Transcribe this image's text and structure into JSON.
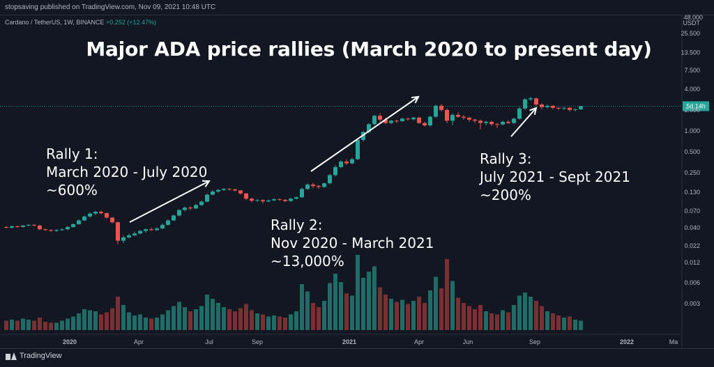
{
  "header": {
    "publisher_text": "stopsaving published on TradingView.com, Nov 09, 2021 10:48 UTC"
  },
  "symbol": {
    "name": "Cardano / TetherUS, 1W, BINANCE",
    "change": "+0.252 (+12.47%)"
  },
  "footer": {
    "brand": "TradingView"
  },
  "colors": {
    "up": "#26a69a",
    "down": "#ef5350",
    "vol_up": "#1f6b66",
    "vol_down": "#7a2f33",
    "background": "#131722",
    "axis_text": "#b2b5be"
  },
  "chart_data": {
    "type": "candlestick",
    "title": "Major ADA price rallies (March 2020 to present day)",
    "y_scale": "log",
    "currency_label": "USDT",
    "top_value": "48.000",
    "price_ticks": [
      25.5,
      13.5,
      7.5,
      4.0,
      2.0,
      1.0,
      0.5,
      0.25,
      0.13,
      0.07,
      0.04,
      0.022
    ],
    "price_tick_labels": [
      "25.500",
      "13.500",
      "7.500",
      "4.000",
      "2.000",
      "1.000",
      "0.500",
      "0.250",
      "0.130",
      "0.070",
      "0.040",
      "0.022"
    ],
    "volume_tick_labels": [
      "0.012",
      "0.006",
      "0.003"
    ],
    "x_tick_labels": [
      "2020",
      "Apr",
      "Jul",
      "Sep",
      "2021",
      "Apr",
      "Jun",
      "Sep",
      "2022",
      "Ma"
    ],
    "last_price": 2.27,
    "price_badge": "5d 14h",
    "candles": [
      {
        "o": 0.041,
        "c": 0.04,
        "h": 0.042,
        "l": 0.039,
        "v": 0.9
      },
      {
        "o": 0.04,
        "c": 0.042,
        "h": 0.043,
        "l": 0.039,
        "v": 1.0
      },
      {
        "o": 0.042,
        "c": 0.041,
        "h": 0.043,
        "l": 0.04,
        "v": 0.9
      },
      {
        "o": 0.041,
        "c": 0.043,
        "h": 0.044,
        "l": 0.04,
        "v": 1.1
      },
      {
        "o": 0.043,
        "c": 0.044,
        "h": 0.045,
        "l": 0.042,
        "v": 1.0
      },
      {
        "o": 0.044,
        "c": 0.043,
        "h": 0.045,
        "l": 0.042,
        "v": 0.9
      },
      {
        "o": 0.043,
        "c": 0.038,
        "h": 0.044,
        "l": 0.037,
        "v": 1.2
      },
      {
        "o": 0.038,
        "c": 0.037,
        "h": 0.039,
        "l": 0.036,
        "v": 0.8
      },
      {
        "o": 0.037,
        "c": 0.036,
        "h": 0.038,
        "l": 0.035,
        "v": 0.7
      },
      {
        "o": 0.036,
        "c": 0.037,
        "h": 0.038,
        "l": 0.035,
        "v": 0.7
      },
      {
        "o": 0.037,
        "c": 0.038,
        "h": 0.039,
        "l": 0.036,
        "v": 0.9
      },
      {
        "o": 0.038,
        "c": 0.041,
        "h": 0.042,
        "l": 0.037,
        "v": 1.1
      },
      {
        "o": 0.041,
        "c": 0.045,
        "h": 0.046,
        "l": 0.04,
        "v": 1.3
      },
      {
        "o": 0.045,
        "c": 0.051,
        "h": 0.053,
        "l": 0.044,
        "v": 1.6
      },
      {
        "o": 0.051,
        "c": 0.058,
        "h": 0.06,
        "l": 0.05,
        "v": 2.0
      },
      {
        "o": 0.058,
        "c": 0.064,
        "h": 0.067,
        "l": 0.056,
        "v": 1.9
      },
      {
        "o": 0.064,
        "c": 0.068,
        "h": 0.07,
        "l": 0.061,
        "v": 1.8
      },
      {
        "o": 0.068,
        "c": 0.065,
        "h": 0.071,
        "l": 0.062,
        "v": 1.5
      },
      {
        "o": 0.065,
        "c": 0.056,
        "h": 0.066,
        "l": 0.054,
        "v": 1.7
      },
      {
        "o": 0.056,
        "c": 0.048,
        "h": 0.057,
        "l": 0.046,
        "v": 2.1
      },
      {
        "o": 0.048,
        "c": 0.026,
        "h": 0.049,
        "l": 0.023,
        "v": 3.2
      },
      {
        "o": 0.026,
        "c": 0.029,
        "h": 0.031,
        "l": 0.024,
        "v": 2.4
      },
      {
        "o": 0.029,
        "c": 0.031,
        "h": 0.033,
        "l": 0.028,
        "v": 1.7
      },
      {
        "o": 0.031,
        "c": 0.033,
        "h": 0.035,
        "l": 0.03,
        "v": 1.4
      },
      {
        "o": 0.033,
        "c": 0.036,
        "h": 0.037,
        "l": 0.032,
        "v": 1.5
      },
      {
        "o": 0.036,
        "c": 0.038,
        "h": 0.039,
        "l": 0.034,
        "v": 1.2
      },
      {
        "o": 0.038,
        "c": 0.037,
        "h": 0.04,
        "l": 0.036,
        "v": 1.1
      },
      {
        "o": 0.037,
        "c": 0.039,
        "h": 0.041,
        "l": 0.036,
        "v": 1.2
      },
      {
        "o": 0.039,
        "c": 0.044,
        "h": 0.046,
        "l": 0.038,
        "v": 1.5
      },
      {
        "o": 0.044,
        "c": 0.051,
        "h": 0.053,
        "l": 0.043,
        "v": 1.9
      },
      {
        "o": 0.051,
        "c": 0.06,
        "h": 0.062,
        "l": 0.05,
        "v": 2.3
      },
      {
        "o": 0.06,
        "c": 0.072,
        "h": 0.074,
        "l": 0.058,
        "v": 2.7
      },
      {
        "o": 0.072,
        "c": 0.078,
        "h": 0.081,
        "l": 0.069,
        "v": 2.2
      },
      {
        "o": 0.078,
        "c": 0.076,
        "h": 0.082,
        "l": 0.072,
        "v": 1.8
      },
      {
        "o": 0.076,
        "c": 0.085,
        "h": 0.088,
        "l": 0.074,
        "v": 2.0
      },
      {
        "o": 0.085,
        "c": 0.095,
        "h": 0.099,
        "l": 0.083,
        "v": 2.3
      },
      {
        "o": 0.095,
        "c": 0.12,
        "h": 0.125,
        "l": 0.093,
        "v": 3.4
      },
      {
        "o": 0.12,
        "c": 0.133,
        "h": 0.14,
        "l": 0.117,
        "v": 3.0
      },
      {
        "o": 0.133,
        "c": 0.14,
        "h": 0.145,
        "l": 0.128,
        "v": 2.6
      },
      {
        "o": 0.14,
        "c": 0.145,
        "h": 0.15,
        "l": 0.136,
        "v": 2.2
      },
      {
        "o": 0.145,
        "c": 0.143,
        "h": 0.15,
        "l": 0.138,
        "v": 2.0
      },
      {
        "o": 0.143,
        "c": 0.138,
        "h": 0.148,
        "l": 0.134,
        "v": 1.8
      },
      {
        "o": 0.138,
        "c": 0.125,
        "h": 0.14,
        "l": 0.12,
        "v": 2.1
      },
      {
        "o": 0.125,
        "c": 0.105,
        "h": 0.127,
        "l": 0.1,
        "v": 2.5
      },
      {
        "o": 0.105,
        "c": 0.098,
        "h": 0.108,
        "l": 0.093,
        "v": 1.9
      },
      {
        "o": 0.098,
        "c": 0.1,
        "h": 0.104,
        "l": 0.095,
        "v": 1.6
      },
      {
        "o": 0.1,
        "c": 0.096,
        "h": 0.103,
        "l": 0.09,
        "v": 1.5
      },
      {
        "o": 0.096,
        "c": 0.099,
        "h": 0.102,
        "l": 0.093,
        "v": 1.3
      },
      {
        "o": 0.099,
        "c": 0.103,
        "h": 0.106,
        "l": 0.097,
        "v": 1.4
      },
      {
        "o": 0.103,
        "c": 0.101,
        "h": 0.106,
        "l": 0.098,
        "v": 1.3
      },
      {
        "o": 0.101,
        "c": 0.097,
        "h": 0.104,
        "l": 0.094,
        "v": 1.2
      },
      {
        "o": 0.097,
        "c": 0.105,
        "h": 0.108,
        "l": 0.095,
        "v": 1.5
      },
      {
        "o": 0.105,
        "c": 0.11,
        "h": 0.114,
        "l": 0.102,
        "v": 1.8
      },
      {
        "o": 0.11,
        "c": 0.145,
        "h": 0.152,
        "l": 0.108,
        "v": 4.4
      },
      {
        "o": 0.145,
        "c": 0.168,
        "h": 0.175,
        "l": 0.14,
        "v": 3.7
      },
      {
        "o": 0.168,
        "c": 0.16,
        "h": 0.178,
        "l": 0.15,
        "v": 2.6
      },
      {
        "o": 0.16,
        "c": 0.155,
        "h": 0.165,
        "l": 0.145,
        "v": 2.2
      },
      {
        "o": 0.155,
        "c": 0.175,
        "h": 0.18,
        "l": 0.15,
        "v": 2.8
      },
      {
        "o": 0.175,
        "c": 0.23,
        "h": 0.24,
        "l": 0.17,
        "v": 4.5
      },
      {
        "o": 0.23,
        "c": 0.3,
        "h": 0.32,
        "l": 0.22,
        "v": 5.4
      },
      {
        "o": 0.3,
        "c": 0.36,
        "h": 0.38,
        "l": 0.29,
        "v": 4.6
      },
      {
        "o": 0.36,
        "c": 0.34,
        "h": 0.39,
        "l": 0.32,
        "v": 3.5
      },
      {
        "o": 0.34,
        "c": 0.39,
        "h": 0.41,
        "l": 0.33,
        "v": 3.3
      },
      {
        "o": 0.39,
        "c": 0.74,
        "h": 0.76,
        "l": 0.38,
        "v": 7.2
      },
      {
        "o": 0.74,
        "c": 0.96,
        "h": 1.0,
        "l": 0.7,
        "v": 5.0
      },
      {
        "o": 0.96,
        "c": 1.25,
        "h": 1.3,
        "l": 0.92,
        "v": 5.6
      },
      {
        "o": 1.25,
        "c": 1.65,
        "h": 1.7,
        "l": 1.2,
        "v": 6.1
      },
      {
        "o": 1.65,
        "c": 1.45,
        "h": 1.8,
        "l": 1.35,
        "v": 4.1
      },
      {
        "o": 1.45,
        "c": 1.3,
        "h": 1.55,
        "l": 1.25,
        "v": 3.4
      },
      {
        "o": 1.3,
        "c": 1.4,
        "h": 1.45,
        "l": 1.25,
        "v": 3.0
      },
      {
        "o": 1.4,
        "c": 1.38,
        "h": 1.45,
        "l": 1.3,
        "v": 2.7
      },
      {
        "o": 1.38,
        "c": 1.5,
        "h": 1.55,
        "l": 1.35,
        "v": 2.9
      },
      {
        "o": 1.5,
        "c": 1.47,
        "h": 1.56,
        "l": 1.4,
        "v": 2.5
      },
      {
        "o": 1.47,
        "c": 1.55,
        "h": 1.6,
        "l": 1.42,
        "v": 2.8
      },
      {
        "o": 1.55,
        "c": 1.3,
        "h": 1.6,
        "l": 1.25,
        "v": 3.2
      },
      {
        "o": 1.3,
        "c": 1.2,
        "h": 1.35,
        "l": 1.15,
        "v": 2.6
      },
      {
        "o": 1.2,
        "c": 1.6,
        "h": 1.65,
        "l": 1.15,
        "v": 3.8
      },
      {
        "o": 1.6,
        "c": 2.3,
        "h": 2.4,
        "l": 1.55,
        "v": 5.1
      },
      {
        "o": 2.3,
        "c": 2.0,
        "h": 2.45,
        "l": 1.9,
        "v": 4.0
      },
      {
        "o": 2.0,
        "c": 1.4,
        "h": 2.1,
        "l": 1.3,
        "v": 6.8
      },
      {
        "o": 1.4,
        "c": 1.7,
        "h": 1.8,
        "l": 1.2,
        "v": 4.7
      },
      {
        "o": 1.7,
        "c": 1.6,
        "h": 1.85,
        "l": 1.55,
        "v": 3.1
      },
      {
        "o": 1.6,
        "c": 1.55,
        "h": 1.7,
        "l": 1.45,
        "v": 2.6
      },
      {
        "o": 1.55,
        "c": 1.45,
        "h": 1.6,
        "l": 1.35,
        "v": 2.3
      },
      {
        "o": 1.45,
        "c": 1.4,
        "h": 1.5,
        "l": 1.3,
        "v": 2.0
      },
      {
        "o": 1.4,
        "c": 1.3,
        "h": 1.45,
        "l": 1.05,
        "v": 2.4
      },
      {
        "o": 1.3,
        "c": 1.35,
        "h": 1.4,
        "l": 1.2,
        "v": 1.8
      },
      {
        "o": 1.35,
        "c": 1.25,
        "h": 1.4,
        "l": 1.18,
        "v": 1.6
      },
      {
        "o": 1.25,
        "c": 1.24,
        "h": 1.3,
        "l": 1.1,
        "v": 1.5
      },
      {
        "o": 1.24,
        "c": 1.35,
        "h": 1.4,
        "l": 1.2,
        "v": 1.9
      },
      {
        "o": 1.35,
        "c": 1.3,
        "h": 1.42,
        "l": 1.25,
        "v": 1.7
      },
      {
        "o": 1.3,
        "c": 1.5,
        "h": 1.55,
        "l": 1.25,
        "v": 2.4
      },
      {
        "o": 1.5,
        "c": 2.1,
        "h": 2.2,
        "l": 1.45,
        "v": 3.3
      },
      {
        "o": 2.1,
        "c": 2.85,
        "h": 2.95,
        "l": 2.0,
        "v": 3.6
      },
      {
        "o": 2.85,
        "c": 2.95,
        "h": 3.1,
        "l": 2.7,
        "v": 3.2
      },
      {
        "o": 2.95,
        "c": 2.4,
        "h": 3.0,
        "l": 2.3,
        "v": 2.8
      },
      {
        "o": 2.4,
        "c": 2.2,
        "h": 2.5,
        "l": 2.05,
        "v": 2.3
      },
      {
        "o": 2.2,
        "c": 2.3,
        "h": 2.4,
        "l": 2.1,
        "v": 1.8
      },
      {
        "o": 2.3,
        "c": 2.15,
        "h": 2.35,
        "l": 2.05,
        "v": 1.6
      },
      {
        "o": 2.15,
        "c": 2.1,
        "h": 2.2,
        "l": 2.0,
        "v": 1.4
      },
      {
        "o": 2.1,
        "c": 2.15,
        "h": 2.2,
        "l": 2.0,
        "v": 1.2
      },
      {
        "o": 2.15,
        "c": 2.0,
        "h": 2.2,
        "l": 1.9,
        "v": 1.3
      },
      {
        "o": 2.0,
        "c": 2.05,
        "h": 2.1,
        "l": 1.9,
        "v": 1.0
      },
      {
        "o": 2.05,
        "c": 2.27,
        "h": 2.3,
        "l": 2.0,
        "v": 0.9
      }
    ]
  },
  "annotations": [
    {
      "lines": [
        "Rally 1:",
        "March 2020 - July 2020",
        "~600%"
      ]
    },
    {
      "lines": [
        "Rally 2:",
        "Nov 2020 - March 2021",
        "~13,000%"
      ]
    },
    {
      "lines": [
        "Rally 3:",
        "July 2021 - Sept 2021",
        "~200%"
      ]
    }
  ]
}
